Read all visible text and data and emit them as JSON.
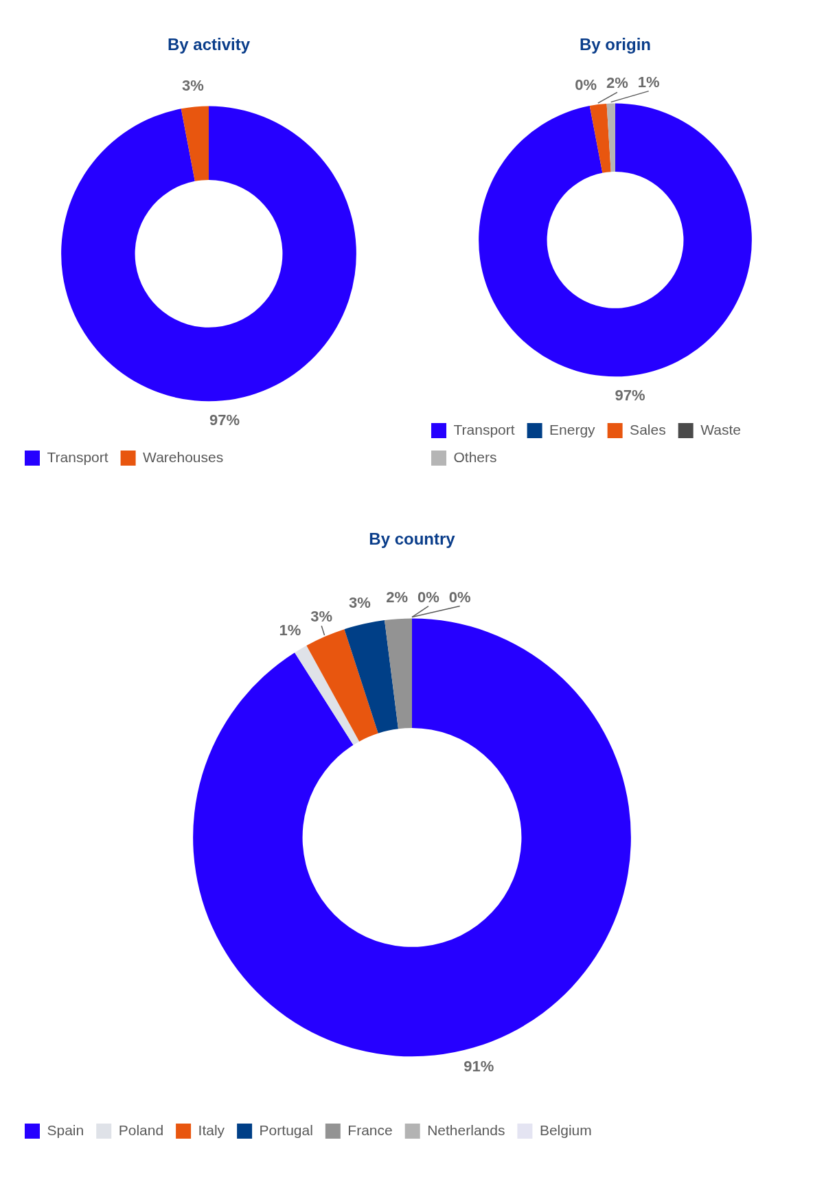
{
  "chart_data": [
    {
      "type": "donut",
      "title": "By activity",
      "categories": [
        "Transport",
        "Warehouses"
      ],
      "values": [
        97,
        3
      ],
      "colors": [
        "#2600ff",
        "#e8560f"
      ],
      "value_labels": [
        "97%",
        "3%"
      ],
      "legend": "bottom"
    },
    {
      "type": "donut",
      "title": "By origin",
      "categories": [
        "Transport",
        "Energy",
        "Sales",
        "Waste",
        "Others"
      ],
      "values": [
        97,
        0,
        2,
        0,
        1
      ],
      "colors": [
        "#2600ff",
        "#003f87",
        "#e8560f",
        "#4a4a4a",
        "#b5b5b5"
      ],
      "value_labels": [
        "97%",
        "0%",
        "2%",
        null,
        "1%"
      ],
      "legend": "bottom"
    },
    {
      "type": "donut",
      "title": "By country",
      "categories": [
        "Spain",
        "Poland",
        "Italy",
        "Portugal",
        "France",
        "Netherlands",
        "Belgium"
      ],
      "values": [
        91,
        1,
        3,
        3,
        2,
        0,
        0
      ],
      "colors": [
        "#2600ff",
        "#dfe2e8",
        "#e8560f",
        "#003f87",
        "#939393",
        "#b3b3b3",
        "#e4e4f2"
      ],
      "value_labels": [
        "91%",
        "1%",
        "3%",
        "3%",
        "2%",
        "0%",
        "0%"
      ],
      "legend": "bottom"
    }
  ]
}
